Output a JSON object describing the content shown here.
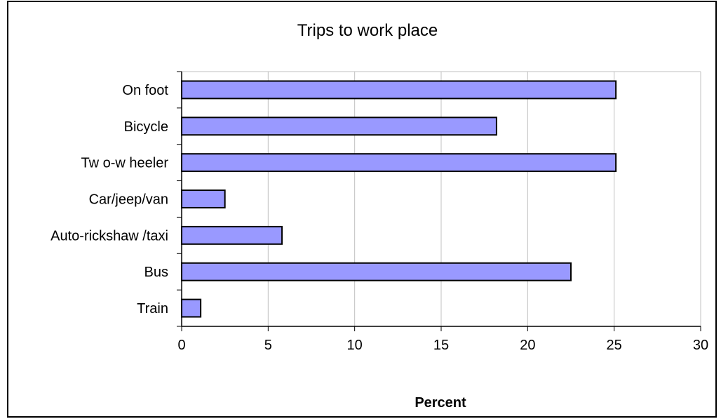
{
  "chart_data": {
    "type": "bar",
    "orientation": "horizontal",
    "title": "Trips to work place",
    "xlabel": "Percent",
    "ylabel": "",
    "categories": [
      "On foot",
      "Bicycle",
      "Tw o-w heeler",
      "Car/jeep/van",
      "Auto-rickshaw /taxi",
      "Bus",
      "Train"
    ],
    "values": [
      25.1,
      18.2,
      25.1,
      2.5,
      5.8,
      22.5,
      1.1
    ],
    "xlim": [
      0,
      30
    ],
    "xticks": [
      "0",
      "5",
      "10",
      "15",
      "20",
      "25",
      "30"
    ],
    "grid": true,
    "legend": "none",
    "bar_color": "#9999ff",
    "bar_edge_color": "#000000"
  }
}
